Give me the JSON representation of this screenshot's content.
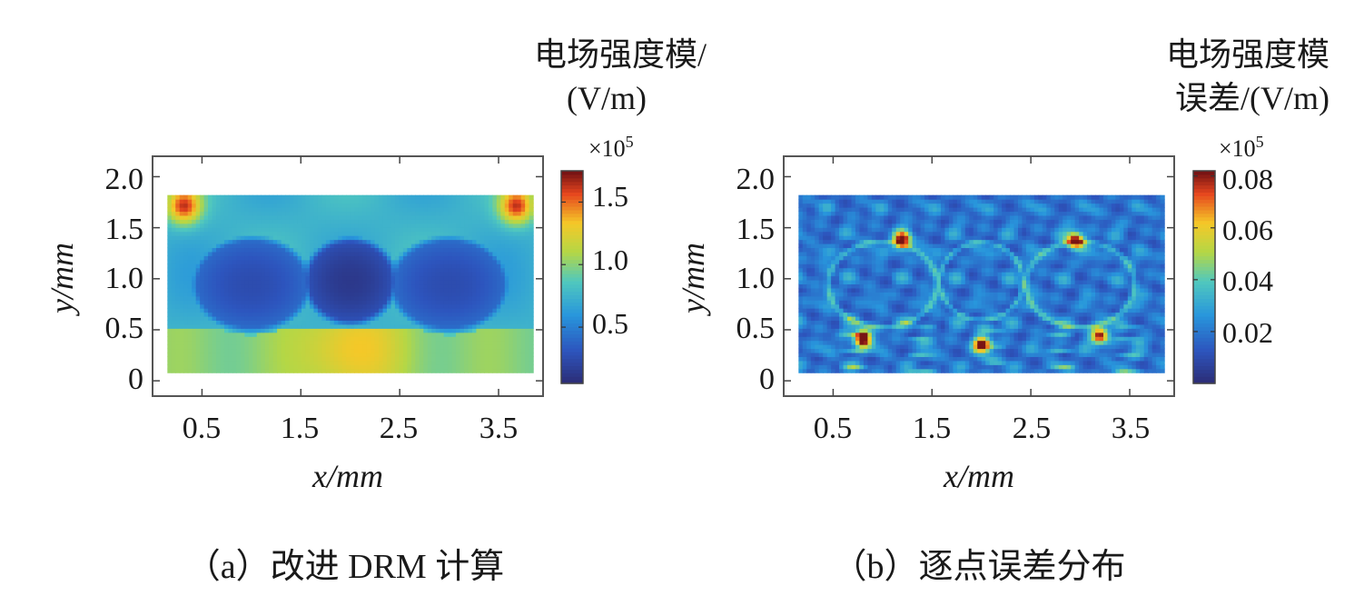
{
  "chart_data": [
    {
      "type": "heatmap",
      "title": "",
      "caption": "（a）改进 DRM 计算",
      "xlabel": "x/mm",
      "ylabel": "y/mm",
      "xlim": [
        0.0,
        3.95
      ],
      "ylim": [
        -0.15,
        2.2
      ],
      "x_ticks": [
        "0.5",
        "1.5",
        "2.5",
        "3.5"
      ],
      "y_ticks": [
        "0",
        "0.5",
        "1.0",
        "1.5",
        "2.0"
      ],
      "colorbar": {
        "title_lines": [
          "电场强度模/",
          "(V/m)"
        ],
        "multiplier": "×10",
        "exponent": "5",
        "range": [
          0.05,
          1.75
        ],
        "ticks": [
          "0.5",
          "1.0",
          "1.5"
        ]
      },
      "domain": {
        "x": [
          0.15,
          3.85
        ],
        "y": [
          0.08,
          1.82
        ]
      },
      "features": {
        "background_level": 0.75,
        "bottom_band": {
          "y": [
            0.08,
            0.5
          ],
          "level": 1.0,
          "peak": 1.35,
          "peak_x": 2.0
        },
        "corner_hotspots": {
          "x": [
            0.32,
            3.68
          ],
          "y": 1.72,
          "level": 1.65
        },
        "ellipses": [
          {
            "cx": 1.0,
            "cy": 0.95,
            "rx": 0.55,
            "ry": 0.42,
            "level": 0.25
          },
          {
            "cx": 2.0,
            "cy": 0.98,
            "rx": 0.42,
            "ry": 0.38,
            "level": 0.12
          },
          {
            "cx": 3.0,
            "cy": 0.95,
            "rx": 0.55,
            "ry": 0.42,
            "level": 0.25
          }
        ]
      }
    },
    {
      "type": "heatmap",
      "title": "",
      "caption": "（b）逐点误差分布",
      "xlabel": "x/mm",
      "ylabel": "y/mm",
      "xlim": [
        0.0,
        3.95
      ],
      "ylim": [
        -0.15,
        2.2
      ],
      "x_ticks": [
        "0.5",
        "1.5",
        "2.5",
        "3.5"
      ],
      "y_ticks": [
        "0",
        "0.5",
        "1.0",
        "1.5",
        "2.0"
      ],
      "colorbar": {
        "title_lines": [
          "电场强度模",
          "误差/(V/m)"
        ],
        "multiplier": "×10",
        "exponent": "5",
        "range": [
          0.0,
          0.082
        ],
        "ticks": [
          "0.02",
          "0.04",
          "0.06",
          "0.08"
        ]
      },
      "domain": {
        "x": [
          0.15,
          3.85
        ],
        "y": [
          0.08,
          1.82
        ]
      },
      "features": {
        "background_level": 0.01,
        "interface_rings": [
          {
            "cx": 1.0,
            "cy": 0.95,
            "rx": 0.55,
            "ry": 0.42
          },
          {
            "cx": 2.0,
            "cy": 0.98,
            "rx": 0.42,
            "ry": 0.38
          },
          {
            "cx": 3.0,
            "cy": 0.95,
            "rx": 0.55,
            "ry": 0.42
          }
        ],
        "hotspots": [
          {
            "x": 0.8,
            "y": 0.42,
            "level": 0.08
          },
          {
            "x": 1.2,
            "y": 1.38,
            "level": 0.07
          },
          {
            "x": 2.95,
            "y": 1.38,
            "level": 0.07
          },
          {
            "x": 3.2,
            "y": 0.45,
            "level": 0.065
          },
          {
            "x": 2.0,
            "y": 0.36,
            "level": 0.06
          }
        ]
      }
    }
  ]
}
